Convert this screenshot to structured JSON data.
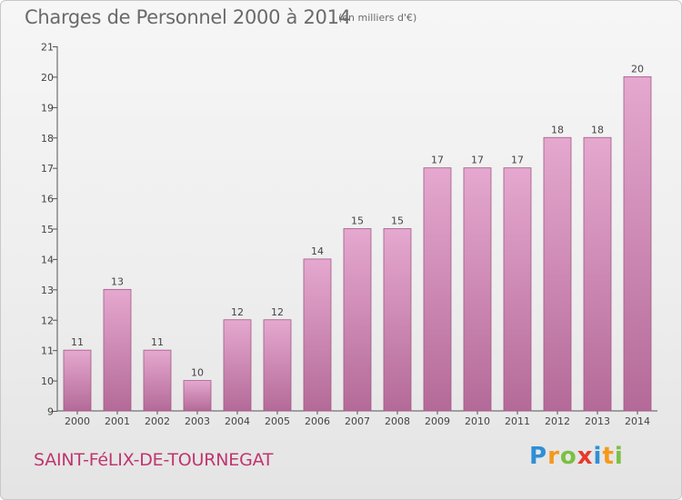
{
  "header": {
    "title": "Charges de Personnel 2000 à 2014",
    "unit": "(en milliers d'€)"
  },
  "footer": {
    "commune": "SAINT-FéLIX-DE-TOURNEGAT",
    "logo": "Proxiti"
  },
  "colors": {
    "bar_top": "#e5a8cf",
    "bar_bottom": "#b46a98",
    "text": "#6a6a6a",
    "commune": "#c0356f"
  },
  "chart_data": {
    "type": "bar",
    "title": "Charges de Personnel 2000 à 2014",
    "subtitle": "(en milliers d'€)",
    "xlabel": "",
    "ylabel": "",
    "ylim": [
      9,
      21
    ],
    "yticks": [
      9,
      10,
      11,
      12,
      13,
      14,
      15,
      16,
      17,
      18,
      19,
      20,
      21
    ],
    "grid": false,
    "categories": [
      "2000",
      "2001",
      "2002",
      "2003",
      "2004",
      "2005",
      "2006",
      "2007",
      "2008",
      "2009",
      "2010",
      "2011",
      "2012",
      "2013",
      "2014"
    ],
    "values": [
      11,
      13,
      11,
      10,
      12,
      12,
      14,
      15,
      15,
      17,
      17,
      17,
      18,
      18,
      20
    ],
    "data_labels": [
      "11",
      "13",
      "11",
      "10",
      "12",
      "12",
      "14",
      "15",
      "15",
      "17",
      "17",
      "17",
      "18",
      "18",
      "20"
    ]
  }
}
